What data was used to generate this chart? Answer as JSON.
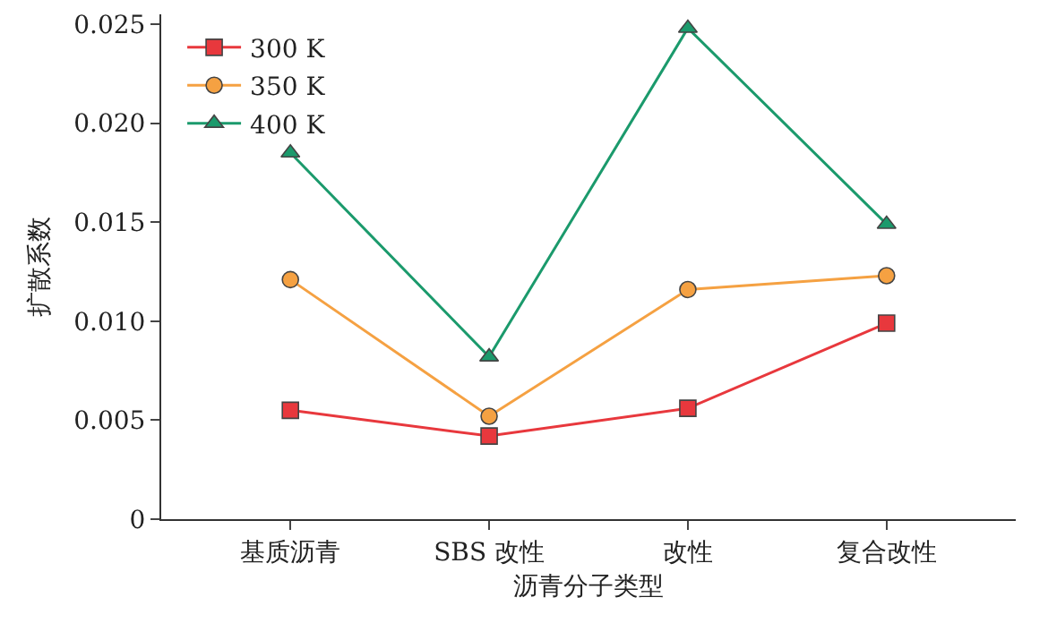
{
  "chart_data": {
    "type": "line",
    "xlabel": "沥青分子类型",
    "ylabel": "扩散系数",
    "categories": [
      "基质沥青",
      "SBS 改性",
      "改性",
      "复合改性"
    ],
    "ylim": [
      0,
      0.0255
    ],
    "yticks": [
      {
        "value": 0,
        "label": "0"
      },
      0.005,
      {
        "value": 0.01,
        "label": "0.010"
      },
      0.015,
      {
        "value": 0.02,
        "label": "0.020"
      },
      0.025
    ],
    "grid": false,
    "legend": "top left",
    "series": [
      {
        "name": "300 K",
        "color": "#e8383d",
        "marker": "square",
        "values": [
          0.0055,
          0.0042,
          0.0056,
          0.0099
        ]
      },
      {
        "name": "350 K",
        "color": "#f5a142",
        "marker": "circle",
        "values": [
          0.0121,
          0.0052,
          0.0116,
          0.0123
        ]
      },
      {
        "name": "400 K",
        "color": "#1b9a6c",
        "marker": "triangle",
        "values": [
          0.0185,
          0.0082,
          0.0248,
          0.0149
        ]
      }
    ]
  }
}
